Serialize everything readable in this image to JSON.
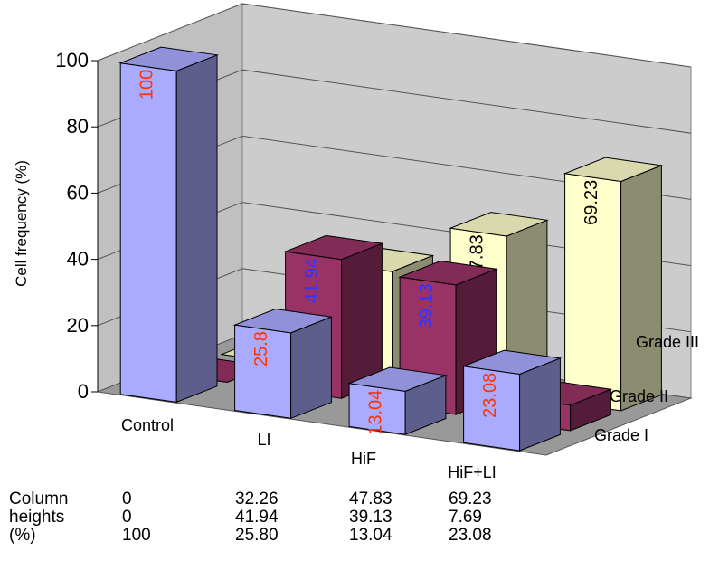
{
  "chart_data": {
    "type": "bar",
    "subtype": "3d-clustered-column",
    "title": "",
    "ylabel": "Cell frequency (%)",
    "xlabel": "",
    "ylim": [
      0,
      100
    ],
    "yticks": [
      "0",
      "20",
      "40",
      "60",
      "80",
      "100"
    ],
    "categories": [
      "Control",
      "LI",
      "HiF",
      "HiF+LI"
    ],
    "series": [
      {
        "name": "Grade I",
        "color": "#aaaaff",
        "values": [
          100,
          25.8,
          13.04,
          23.08
        ],
        "labels": [
          "100",
          "25.8",
          "13.04",
          "23.08"
        ],
        "label_color": "#ff3300"
      },
      {
        "name": "Grade II",
        "color": "#993366",
        "values": [
          0,
          41.94,
          39.13,
          7.69
        ],
        "labels": [
          "0",
          "41.94",
          "39.13",
          "7.69"
        ],
        "label_color": "#3333ff"
      },
      {
        "name": "Grade III",
        "color": "#ffffcc",
        "values": [
          0,
          32.26,
          47.83,
          69.23
        ],
        "labels": [
          "",
          "32.26",
          "47.83",
          "69.23"
        ],
        "label_color": "#000000"
      }
    ],
    "grid": true
  },
  "table": {
    "row_labels": [
      "Column",
      "heights",
      "(%)"
    ],
    "rows": [
      [
        "0",
        "32.26",
        "47.83",
        "69.23"
      ],
      [
        "0",
        "41.94",
        "39.13",
        "7.69"
      ],
      [
        "100",
        "25.80",
        "13.04",
        "23.08"
      ]
    ]
  }
}
